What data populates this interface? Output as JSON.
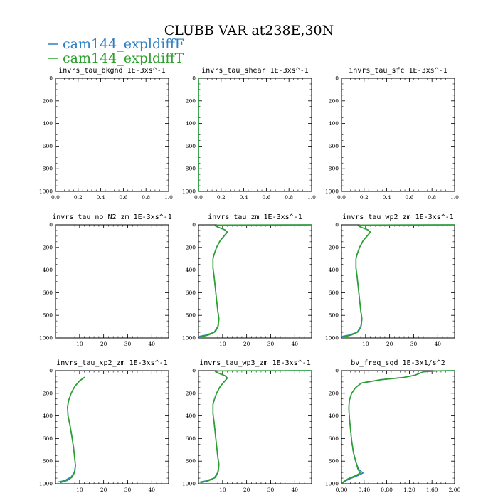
{
  "figure": {
    "title": "CLUBB VAR at238E,30N",
    "legend": [
      {
        "name": "cam144_expldiffF",
        "color": "#2f7fc1"
      },
      {
        "name": "cam144_expldiffT",
        "color": "#2ca02c"
      }
    ]
  },
  "chart_data": [
    {
      "type": "line",
      "title": "invrs_tau_bkgnd",
      "units": "1E-3xs^-1",
      "xlim": [
        0,
        1
      ],
      "ylim": [
        1000,
        0
      ],
      "xticks": [
        "0.0",
        "0.2",
        "0.4",
        "0.6",
        "0.8",
        "1.0"
      ],
      "yticks": [
        "0",
        "200",
        "400",
        "600",
        "800",
        "1000"
      ],
      "series": [
        {
          "name": "cam144_expldiffF",
          "points": [
            [
              0,
              0
            ],
            [
              0,
              1000
            ]
          ]
        },
        {
          "name": "cam144_expldiffT",
          "points": [
            [
              0,
              0
            ],
            [
              0,
              1000
            ]
          ]
        }
      ]
    },
    {
      "type": "line",
      "title": "invrs_tau_shear",
      "units": "1E-3xs^-1",
      "xlim": [
        0,
        1
      ],
      "ylim": [
        1000,
        0
      ],
      "xticks": [
        "0.0",
        "0.2",
        "0.4",
        "0.6",
        "0.8",
        "1.0"
      ],
      "yticks": [
        "0",
        "200",
        "400",
        "600",
        "800",
        "1000"
      ],
      "series": [
        {
          "name": "cam144_expldiffF",
          "points": [
            [
              0,
              0
            ],
            [
              0,
              1000
            ]
          ]
        },
        {
          "name": "cam144_expldiffT",
          "points": [
            [
              0,
              0
            ],
            [
              0,
              1000
            ]
          ]
        }
      ]
    },
    {
      "type": "line",
      "title": "invrs_tau_sfc",
      "units": "1E-3xs^-1",
      "xlim": [
        0,
        1
      ],
      "ylim": [
        1000,
        0
      ],
      "xticks": [
        "0.0",
        "0.2",
        "0.4",
        "0.6",
        "0.8",
        "1.0"
      ],
      "yticks": [
        "0",
        "200",
        "400",
        "600",
        "800",
        "1000"
      ],
      "series": [
        {
          "name": "cam144_expldiffF",
          "points": [
            [
              0,
              0
            ],
            [
              0,
              1000
            ]
          ]
        },
        {
          "name": "cam144_expldiffT",
          "points": [
            [
              0,
              0
            ],
            [
              0,
              1000
            ]
          ]
        }
      ]
    },
    {
      "type": "line",
      "title": "invrs_tau_no_N2_zm",
      "units": "1E-3xs^-1",
      "xlim": [
        0,
        47
      ],
      "ylim": [
        1000,
        0
      ],
      "xticks": [
        "10",
        "20",
        "30",
        "40"
      ],
      "yticks": [
        "0",
        "200",
        "400",
        "600",
        "800",
        "1000"
      ],
      "series": [
        {
          "name": "cam144_expldiffF",
          "points": [
            [
              0,
              0
            ],
            [
              0,
              1000
            ]
          ]
        },
        {
          "name": "cam144_expldiffT",
          "points": [
            [
              0,
              0
            ],
            [
              0,
              1000
            ]
          ]
        }
      ]
    },
    {
      "type": "line",
      "title": "invrs_tau_zm",
      "units": "1E-3xs^-1",
      "xlim": [
        0,
        47
      ],
      "ylim": [
        1000,
        0
      ],
      "xticks": [
        "10",
        "20",
        "30",
        "40"
      ],
      "yticks": [
        "0",
        "200",
        "400",
        "600",
        "800",
        "1000"
      ],
      "series": [
        {
          "name": "cam144_expldiffF",
          "points": [
            [
              47,
              0
            ],
            [
              8,
              2
            ],
            [
              7,
              8
            ],
            [
              8,
              20
            ],
            [
              11,
              45
            ],
            [
              12,
              65
            ],
            [
              11,
              90
            ],
            [
              9,
              140
            ],
            [
              7.5,
              200
            ],
            [
              6.5,
              260
            ],
            [
              6,
              300
            ],
            [
              6,
              380
            ],
            [
              6.5,
              460
            ],
            [
              7,
              560
            ],
            [
              7.5,
              660
            ],
            [
              8,
              760
            ],
            [
              8.5,
              830
            ],
            [
              8,
              900
            ],
            [
              6.5,
              950
            ],
            [
              3,
              975
            ],
            [
              0.5,
              985
            ]
          ]
        },
        {
          "name": "cam144_expldiffT",
          "points": [
            [
              47,
              0
            ],
            [
              8,
              2
            ],
            [
              7,
              8
            ],
            [
              8,
              20
            ],
            [
              11,
              45
            ],
            [
              12,
              65
            ],
            [
              11,
              90
            ],
            [
              9,
              140
            ],
            [
              7.5,
              200
            ],
            [
              6.5,
              260
            ],
            [
              6,
              300
            ],
            [
              6,
              380
            ],
            [
              6.5,
              460
            ],
            [
              7,
              560
            ],
            [
              7.5,
              660
            ],
            [
              8,
              760
            ],
            [
              8.5,
              830
            ],
            [
              8.2,
              895
            ],
            [
              7,
              945
            ],
            [
              4,
              975
            ],
            [
              1,
              990
            ]
          ]
        }
      ]
    },
    {
      "type": "line",
      "title": "invrs_tau_wp2_zm",
      "units": "1E-3xs^-1",
      "xlim": [
        0,
        47
      ],
      "ylim": [
        1000,
        0
      ],
      "xticks": [
        "10",
        "20",
        "30",
        "40"
      ],
      "yticks": [
        "0",
        "200",
        "400",
        "600",
        "800",
        "1000"
      ],
      "series": [
        {
          "name": "cam144_expldiffF",
          "points": [
            [
              47,
              0
            ],
            [
              8,
              2
            ],
            [
              7,
              8
            ],
            [
              8,
              20
            ],
            [
              11,
              45
            ],
            [
              12,
              65
            ],
            [
              11,
              90
            ],
            [
              9,
              140
            ],
            [
              7.5,
              200
            ],
            [
              6.5,
              260
            ],
            [
              6,
              300
            ],
            [
              6,
              380
            ],
            [
              6.5,
              460
            ],
            [
              7,
              560
            ],
            [
              7.5,
              660
            ],
            [
              8,
              760
            ],
            [
              8.5,
              830
            ],
            [
              8,
              900
            ],
            [
              6.5,
              950
            ],
            [
              3,
              975
            ],
            [
              0.5,
              985
            ]
          ]
        },
        {
          "name": "cam144_expldiffT",
          "points": [
            [
              47,
              0
            ],
            [
              8,
              2
            ],
            [
              7,
              8
            ],
            [
              8,
              20
            ],
            [
              11,
              45
            ],
            [
              12,
              65
            ],
            [
              11,
              90
            ],
            [
              9,
              140
            ],
            [
              7.5,
              200
            ],
            [
              6.5,
              260
            ],
            [
              6,
              300
            ],
            [
              6,
              380
            ],
            [
              6.5,
              460
            ],
            [
              7,
              560
            ],
            [
              7.5,
              660
            ],
            [
              8,
              760
            ],
            [
              8.5,
              830
            ],
            [
              8.2,
              895
            ],
            [
              7,
              945
            ],
            [
              4,
              975
            ],
            [
              1,
              990
            ]
          ]
        }
      ]
    },
    {
      "type": "line",
      "title": "invrs_tau_xp2_zm",
      "units": "1E-3xs^-1",
      "xlim": [
        0,
        47
      ],
      "ylim": [
        1000,
        0
      ],
      "xticks": [
        "10",
        "20",
        "30",
        "40"
      ],
      "yticks": [
        "0",
        "200",
        "400",
        "600",
        "800",
        "1000"
      ],
      "series": [
        {
          "name": "cam144_expldiffF",
          "points": [
            [
              12,
              60
            ],
            [
              10,
              90
            ],
            [
              8,
              140
            ],
            [
              6.5,
              200
            ],
            [
              5.5,
              260
            ],
            [
              5,
              320
            ],
            [
              5.2,
              400
            ],
            [
              6,
              480
            ],
            [
              6.8,
              580
            ],
            [
              7.5,
              680
            ],
            [
              8,
              780
            ],
            [
              8.3,
              840
            ],
            [
              7.8,
              900
            ],
            [
              6.5,
              940
            ],
            [
              4,
              970
            ],
            [
              1,
              985
            ]
          ]
        },
        {
          "name": "cam144_expldiffT",
          "points": [
            [
              12,
              60
            ],
            [
              10,
              90
            ],
            [
              8,
              140
            ],
            [
              6.5,
              200
            ],
            [
              5.5,
              260
            ],
            [
              5,
              320
            ],
            [
              5.2,
              400
            ],
            [
              6,
              480
            ],
            [
              6.8,
              580
            ],
            [
              7.5,
              680
            ],
            [
              8,
              780
            ],
            [
              8.3,
              840
            ],
            [
              8,
              895
            ],
            [
              7,
              940
            ],
            [
              5,
              970
            ],
            [
              2,
              990
            ]
          ]
        }
      ]
    },
    {
      "type": "line",
      "title": "invrs_tau_wp3_zm",
      "units": "1E-3xs^-1",
      "xlim": [
        0,
        47
      ],
      "ylim": [
        1000,
        0
      ],
      "xticks": [
        "10",
        "20",
        "30",
        "40"
      ],
      "yticks": [
        "0",
        "200",
        "400",
        "600",
        "800",
        "1000"
      ],
      "series": [
        {
          "name": "cam144_expldiffF",
          "points": [
            [
              47,
              0
            ],
            [
              8,
              2
            ],
            [
              7,
              8
            ],
            [
              8,
              20
            ],
            [
              11,
              45
            ],
            [
              12,
              65
            ],
            [
              11,
              90
            ],
            [
              9,
              140
            ],
            [
              7.5,
              200
            ],
            [
              6.5,
              260
            ],
            [
              6,
              300
            ],
            [
              6,
              380
            ],
            [
              6.5,
              460
            ],
            [
              7,
              560
            ],
            [
              7.5,
              660
            ],
            [
              8,
              760
            ],
            [
              8.5,
              830
            ],
            [
              8,
              900
            ],
            [
              6.5,
              950
            ],
            [
              3,
              975
            ],
            [
              0.5,
              985
            ]
          ]
        },
        {
          "name": "cam144_expldiffT",
          "points": [
            [
              47,
              0
            ],
            [
              8,
              2
            ],
            [
              7,
              8
            ],
            [
              8,
              20
            ],
            [
              11,
              45
            ],
            [
              12,
              65
            ],
            [
              11,
              90
            ],
            [
              9,
              140
            ],
            [
              7.5,
              200
            ],
            [
              6.5,
              260
            ],
            [
              6,
              300
            ],
            [
              6,
              380
            ],
            [
              6.5,
              460
            ],
            [
              7,
              560
            ],
            [
              7.5,
              660
            ],
            [
              8,
              760
            ],
            [
              8.5,
              830
            ],
            [
              8.2,
              895
            ],
            [
              7,
              945
            ],
            [
              4,
              975
            ],
            [
              1,
              990
            ]
          ]
        }
      ]
    },
    {
      "type": "line",
      "title": "bv_freq_sqd",
      "units": "1E-3x1/s^2",
      "xlim": [
        0,
        2
      ],
      "ylim": [
        1000,
        0
      ],
      "xticks": [
        "0.00",
        "0.40",
        "0.80",
        "1.20",
        "1.60",
        "2.00"
      ],
      "yticks": [
        "0",
        "200",
        "400",
        "600",
        "800",
        "1000"
      ],
      "series": [
        {
          "name": "cam144_expldiffF",
          "points": [
            [
              2,
              0
            ],
            [
              1.7,
              2
            ],
            [
              1.45,
              10
            ],
            [
              1.3,
              40
            ],
            [
              1.1,
              60
            ],
            [
              0.7,
              80
            ],
            [
              0.35,
              110
            ],
            [
              0.25,
              150
            ],
            [
              0.18,
              200
            ],
            [
              0.14,
              260
            ],
            [
              0.13,
              330
            ],
            [
              0.14,
              420
            ],
            [
              0.16,
              520
            ],
            [
              0.18,
              620
            ],
            [
              0.21,
              720
            ],
            [
              0.25,
              800
            ],
            [
              0.3,
              870
            ],
            [
              0.38,
              905
            ],
            [
              0.3,
              925
            ],
            [
              0.15,
              955
            ],
            [
              0.05,
              980
            ],
            [
              0,
              1000
            ]
          ]
        },
        {
          "name": "cam144_expldiffT",
          "points": [
            [
              2,
              0
            ],
            [
              1.7,
              2
            ],
            [
              1.45,
              10
            ],
            [
              1.3,
              40
            ],
            [
              1.1,
              60
            ],
            [
              0.7,
              80
            ],
            [
              0.35,
              110
            ],
            [
              0.25,
              150
            ],
            [
              0.18,
              200
            ],
            [
              0.14,
              260
            ],
            [
              0.13,
              330
            ],
            [
              0.14,
              420
            ],
            [
              0.16,
              520
            ],
            [
              0.18,
              620
            ],
            [
              0.21,
              720
            ],
            [
              0.25,
              800
            ],
            [
              0.29,
              870
            ],
            [
              0.33,
              905
            ],
            [
              0.26,
              925
            ],
            [
              0.12,
              955
            ],
            [
              0.04,
              980
            ],
            [
              0,
              1000
            ]
          ]
        }
      ]
    }
  ]
}
